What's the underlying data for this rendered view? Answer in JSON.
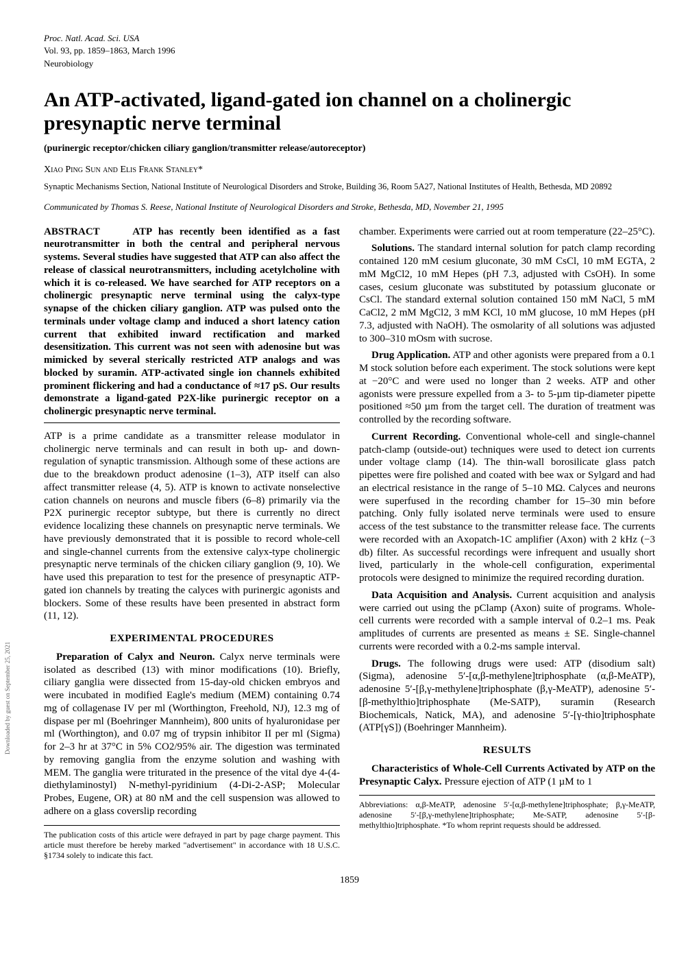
{
  "journal": {
    "name": "Proc. Natl. Acad. Sci. USA",
    "vol_line": "Vol. 93, pp. 1859–1863, March 1996",
    "section": "Neurobiology"
  },
  "title": "An ATP-activated, ligand-gated ion channel on a cholinergic presynaptic nerve terminal",
  "subtitle": "(purinergic receptor/chicken ciliary ganglion/transmitter release/autoreceptor)",
  "authors": "Xiao Ping Sun and Elis Frank Stanley*",
  "affiliation": "Synaptic Mechanisms Section, National Institute of Neurological Disorders and Stroke, Building 36, Room 5A27, National Institutes of Health, Bethesda, MD 20892",
  "communicated": "Communicated by Thomas S. Reese, National Institute of Neurological Disorders and Stroke, Bethesda, MD, November 21, 1995",
  "abstract": {
    "label": "ABSTRACT",
    "text": "ATP has recently been identified as a fast neurotransmitter in both the central and peripheral nervous systems. Several studies have suggested that ATP can also affect the release of classical neurotransmitters, including acetylcholine with which it is co-released. We have searched for ATP receptors on a cholinergic presynaptic nerve terminal using the calyx-type synapse of the chicken ciliary ganglion. ATP was pulsed onto the terminals under voltage clamp and induced a short latency cation current that exhibited inward rectification and marked desensitization. This current was not seen with adenosine but was mimicked by several sterically restricted ATP analogs and was blocked by suramin. ATP-activated single ion channels exhibited prominent flickering and had a conductance of ≈17 pS. Our results demonstrate a ligand-gated P2X-like purinergic receptor on a cholinergic presynaptic nerve terminal."
  },
  "intro": {
    "p1": "ATP is a prime candidate as a transmitter release modulator in cholinergic nerve terminals and can result in both up- and down-regulation of synaptic transmission. Although some of these actions are due to the breakdown product adenosine (1–3), ATP itself can also affect transmitter release (4, 5). ATP is known to activate nonselective cation channels on neurons and muscle fibers (6–8) primarily via the P2X purinergic receptor subtype, but there is currently no direct evidence localizing these channels on presynaptic nerve terminals. We have previously demonstrated that it is possible to record whole-cell and single-channel currents from the extensive calyx-type cholinergic presynaptic nerve terminals of the chicken ciliary ganglion (9, 10). We have used this preparation to test for the presence of presynaptic ATP-gated ion channels by treating the calyces with purinergic agonists and blockers. Some of these results have been presented in abstract form (11, 12)."
  },
  "exp_head": "EXPERIMENTAL PROCEDURES",
  "exp": {
    "prep_label": "Preparation of Calyx and Neuron.",
    "prep_text": " Calyx nerve terminals were isolated as described (13) with minor modifications (10). Briefly, ciliary ganglia were dissected from 15-day-old chicken embryos and were incubated in modified Eagle's medium (MEM) containing 0.74 mg of collagenase IV per ml (Worthington, Freehold, NJ), 12.3 mg of dispase per ml (Boehringer Mannheim), 800 units of hyaluronidase per ml (Worthington), and 0.07 mg of trypsin inhibitor II per ml (Sigma) for 2–3 hr at 37°C in 5% CO2/95% air. The digestion was terminated by removing ganglia from the enzyme solution and washing with MEM. The ganglia were triturated in the presence of the vital dye 4-(4-diethylaminostyl) N-methyl-pyridinium (4-Di-2-ASP; Molecular Probes, Eugene, OR) at 80 nM and the cell suspension was allowed to adhere on a glass coverslip recording",
    "chamber_tail": "chamber. Experiments were carried out at room temperature (22–25°C).",
    "sol_label": "Solutions.",
    "sol_text": " The standard internal solution for patch clamp recording contained 120 mM cesium gluconate, 30 mM CsCl, 10 mM EGTA, 2 mM MgCl2, 10 mM Hepes (pH 7.3, adjusted with CsOH). In some cases, cesium gluconate was substituted by potassium gluconate or CsCl. The standard external solution contained 150 mM NaCl, 5 mM CaCl2, 2 mM MgCl2, 3 mM KCl, 10 mM glucose, 10 mM Hepes (pH 7.3, adjusted with NaOH). The osmolarity of all solutions was adjusted to 300–310 mOsm with sucrose.",
    "drug_label": "Drug Application.",
    "drug_text": " ATP and other agonists were prepared from a 0.1 M stock solution before each experiment. The stock solutions were kept at −20°C and were used no longer than 2 weeks. ATP and other agonists were pressure expelled from a 3- to 5-µm tip-diameter pipette positioned ≈50 µm from the target cell. The duration of treatment was controlled by the recording software.",
    "curr_label": "Current Recording.",
    "curr_text": " Conventional whole-cell and single-channel patch-clamp (outside-out) techniques were used to detect ion currents under voltage clamp (14). The thin-wall borosilicate glass patch pipettes were fire polished and coated with bee wax or Sylgard and had an electrical resistance in the range of 5–10 MΩ. Calyces and neurons were superfused in the recording chamber for 15–30 min before patching. Only fully isolated nerve terminals were used to ensure access of the test substance to the transmitter release face. The currents were recorded with an Axopatch-1C amplifier (Axon) with 2 kHz (−3 db) filter. As successful recordings were infrequent and usually short lived, particularly in the whole-cell configuration, experimental protocols were designed to minimize the required recording duration.",
    "data_label": "Data Acquisition and Analysis.",
    "data_text": " Current acquisition and analysis were carried out using the pClamp (Axon) suite of programs. Whole-cell currents were recorded with a sample interval of 0.2–1 ms. Peak amplitudes of currents are presented as means ± SE. Single-channel currents were recorded with a 0.2-ms sample interval.",
    "drugs_label": "Drugs.",
    "drugs_text": " The following drugs were used: ATP (disodium salt) (Sigma), adenosine 5′-[α,β-methylene]triphosphate (α,β-MeATP), adenosine 5′-[β,γ-methylene]triphosphate (β,γ-MeATP), adenosine 5′-[β-methylthio]triphosphate (Me-SATP), suramin (Research Biochemicals, Natick, MA), and adenosine 5′-[γ-thio]triphosphate (ATP[γS]) (Boehringer Mannheim)."
  },
  "results_head": "RESULTS",
  "results": {
    "char_label": "Characteristics of Whole-Cell Currents Activated by ATP on the Presynaptic Calyx.",
    "char_text": " Pressure ejection of ATP (1 µM to 1"
  },
  "footnote_left": "The publication costs of this article were defrayed in part by page charge payment. This article must therefore be hereby marked \"advertisement\" in accordance with 18 U.S.C. §1734 solely to indicate this fact.",
  "footnote_right": "Abbreviations: α,β-MeATP, adenosine 5′-[α,β-methylene]triphosphate; β,γ-MeATP, adenosine 5′-[β,γ-methylene]triphosphate; Me-SATP, adenosine 5′-[β-methylthio]triphosphate.\n*To whom reprint requests should be addressed.",
  "page_number": "1859",
  "side_text": "Downloaded by guest on September 25, 2021"
}
